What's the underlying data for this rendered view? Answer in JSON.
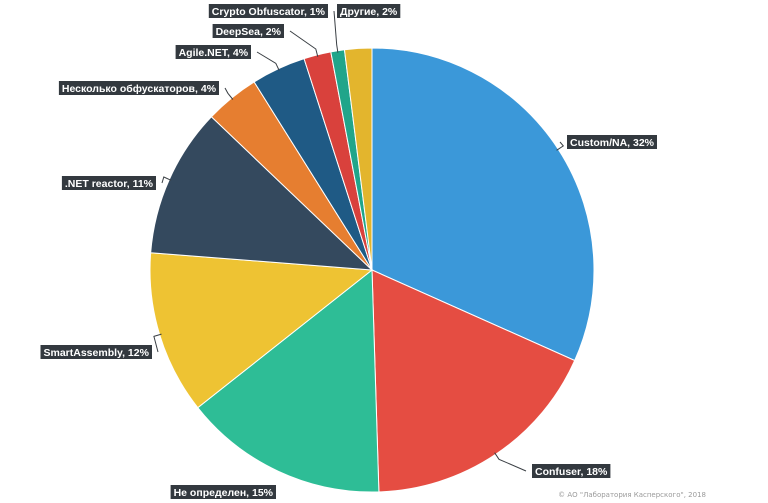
{
  "chart_data": {
    "type": "pie",
    "title": "",
    "legend": "none",
    "slices": [
      {
        "label": "Custom/NA, 32%",
        "value": 32,
        "color": "#3b98d9"
      },
      {
        "label": "Confuser, 18%",
        "value": 18,
        "color": "#e54d42"
      },
      {
        "label": "Не определен, 15%",
        "value": 15,
        "color": "#2ebd96"
      },
      {
        "label": "SmartAssembly, 12%",
        "value": 12,
        "color": "#eec333"
      },
      {
        "label": ".NET reactor, 11%",
        "value": 11,
        "color": "#34495e"
      },
      {
        "label": "Несколько обфускаторов, 4%",
        "value": 4,
        "color": "#e67e30"
      },
      {
        "label": "Agile.NET, 4%",
        "value": 4,
        "color": "#1f5a85"
      },
      {
        "label": "DeepSea, 2%",
        "value": 2,
        "color": "#d9413c"
      },
      {
        "label": "Crypto Obfuscator, 1%",
        "value": 1,
        "color": "#21a58a"
      },
      {
        "label": "Другие, 2%",
        "value": 2,
        "color": "#e3b52d"
      }
    ]
  },
  "footer": {
    "copyright": "© АО \"Лаборатория Касперского\", 2018"
  }
}
